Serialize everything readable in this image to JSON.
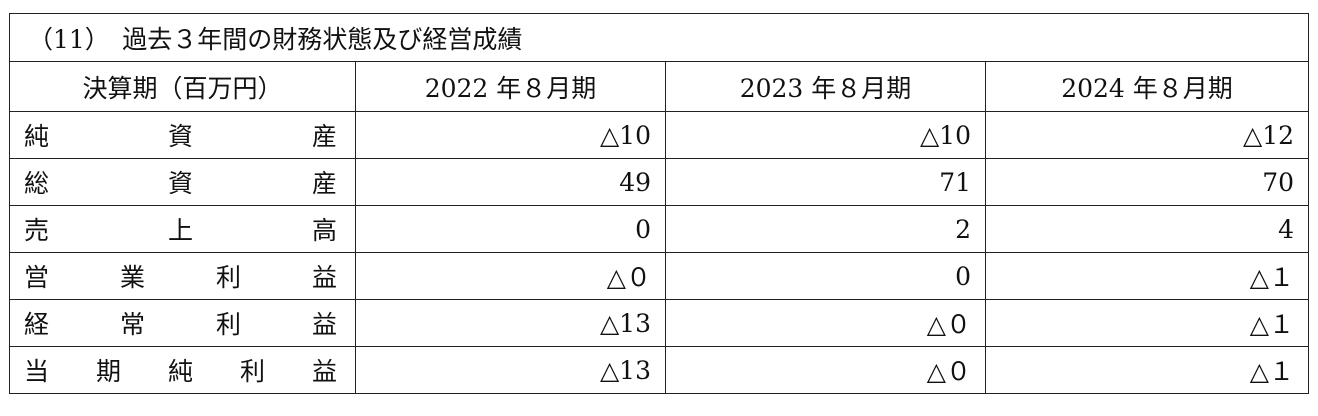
{
  "title": "（11）　過去３年間の財務状態及び経営成績",
  "header": [
    "決算期（百万円）",
    "2022 年８月期",
    "2023 年８月期",
    "2024 年８月期"
  ],
  "rows": [
    {
      "label": [
        "純",
        "資",
        "産"
      ],
      "values": [
        "△10",
        "△10",
        "△12"
      ]
    },
    {
      "label": [
        "総",
        "資",
        "産"
      ],
      "values": [
        "49",
        "71",
        "70"
      ]
    },
    {
      "label": [
        "売",
        "上",
        "高"
      ],
      "values": [
        "0",
        "2",
        "4"
      ]
    },
    {
      "label": [
        "営",
        "業",
        "利",
        "益"
      ],
      "values": [
        "△０",
        "0",
        "△１"
      ]
    },
    {
      "label": [
        "経",
        "常",
        "利",
        "益"
      ],
      "values": [
        "△13",
        "△０",
        "△１"
      ]
    },
    {
      "label": [
        "当",
        "期",
        "純",
        "利",
        "益"
      ],
      "values": [
        "△13",
        "△０",
        "△１"
      ]
    }
  ]
}
